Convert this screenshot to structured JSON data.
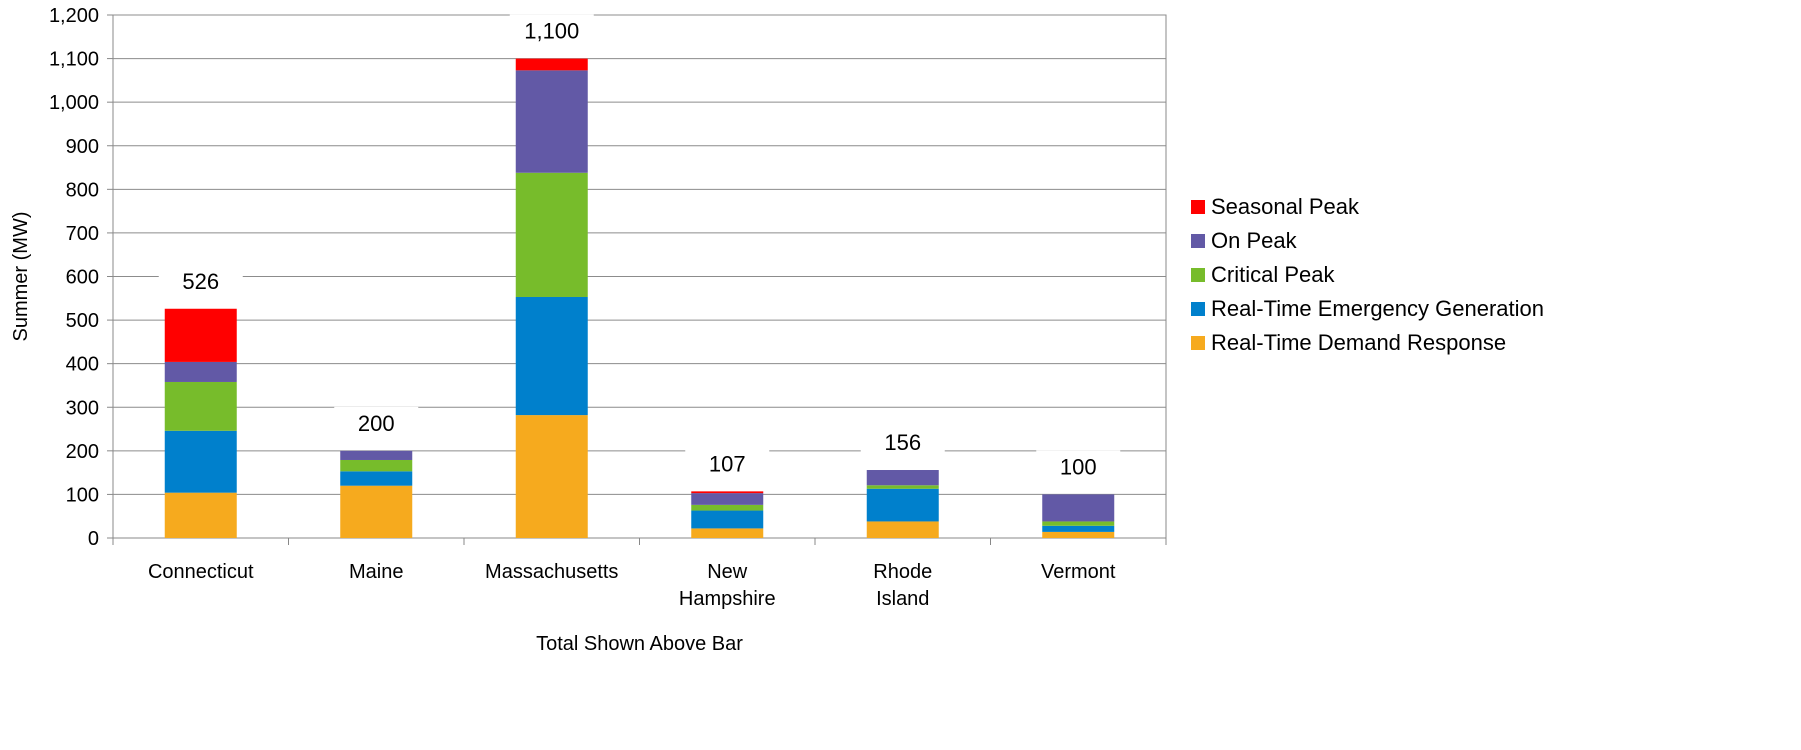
{
  "chart_data": {
    "type": "bar",
    "stacked": true,
    "title": "",
    "xlabel": "Total Shown Above Bar",
    "ylabel": "Summer (MW)",
    "ylim": [
      0,
      1200
    ],
    "ytick_step": 100,
    "grid": true,
    "legend_position": "right",
    "categories": [
      [
        "Connecticut"
      ],
      [
        "Maine"
      ],
      [
        "Massachusetts"
      ],
      [
        "New",
        "Hampshire"
      ],
      [
        "Rhode",
        "Island"
      ],
      [
        "Vermont"
      ]
    ],
    "totals": [
      "526",
      "200",
      "1,100",
      "107",
      "156",
      "100"
    ],
    "series": [
      {
        "name": "Real-Time Demand Response",
        "color": "#F6AA1E",
        "values": [
          104,
          120,
          282,
          22,
          38,
          14
        ]
      },
      {
        "name": "Real-Time Emergency Generation",
        "color": "#0080CC",
        "values": [
          142,
          33,
          271,
          41,
          75,
          14
        ]
      },
      {
        "name": "Critical Peak",
        "color": "#77BC2B",
        "values": [
          112,
          26,
          285,
          13,
          8,
          10
        ]
      },
      {
        "name": "On Peak",
        "color": "#6259A6",
        "values": [
          46,
          21,
          235,
          27,
          35,
          62
        ]
      },
      {
        "name": "Seasonal Peak",
        "color": "#FF0000",
        "values": [
          122,
          0,
          27,
          4,
          0,
          0
        ]
      }
    ]
  }
}
